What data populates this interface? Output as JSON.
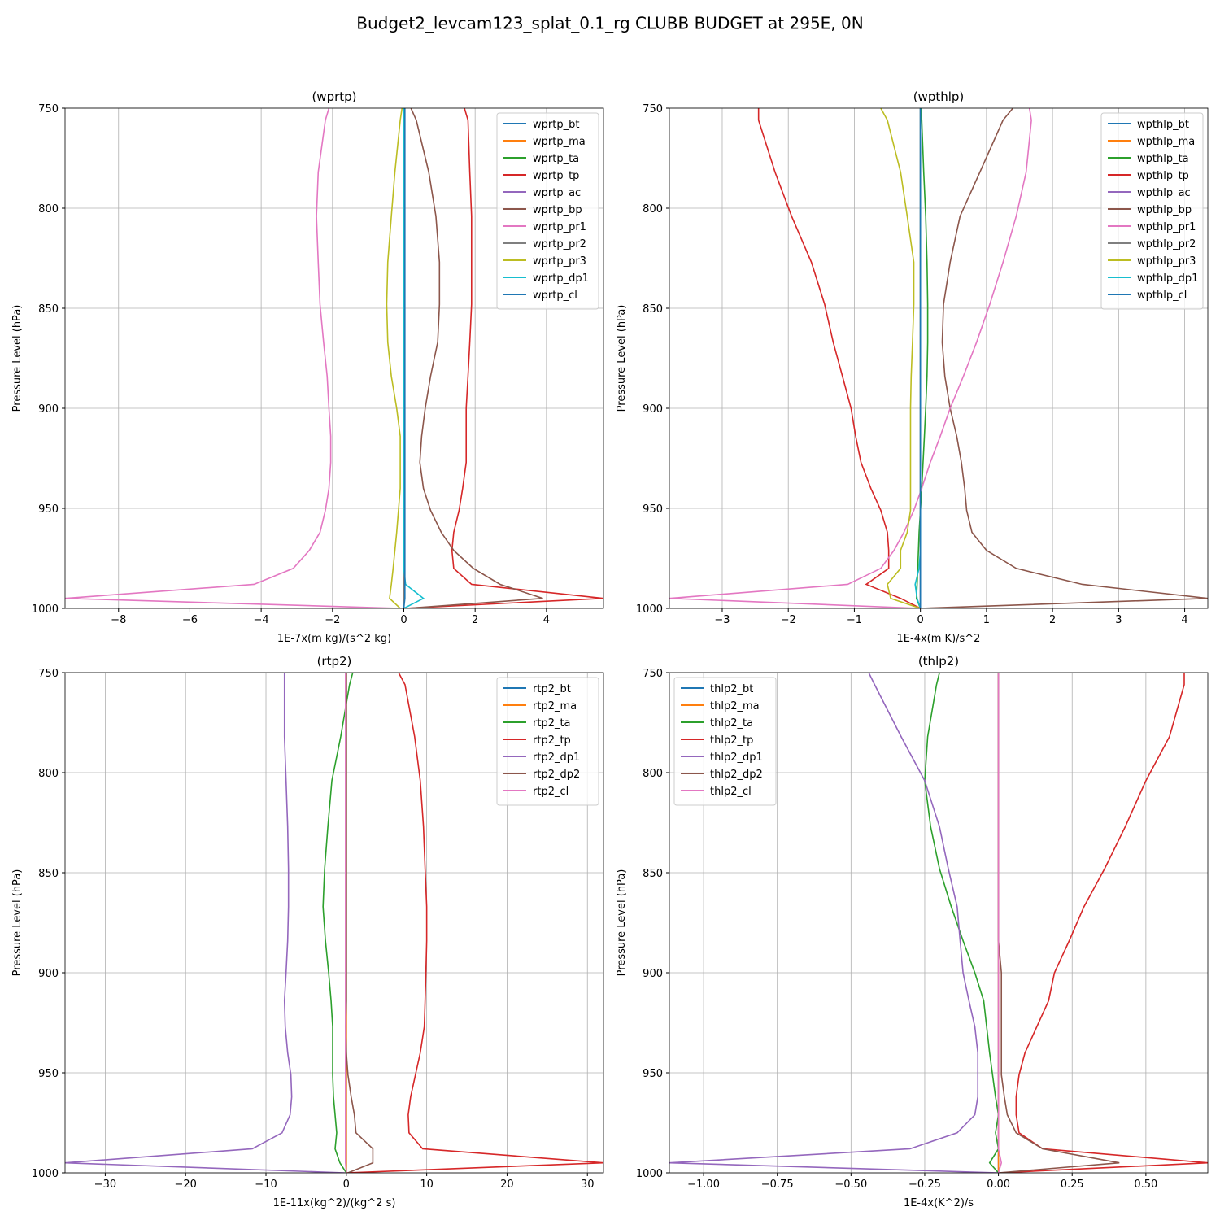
{
  "title": "Budget2_levcam123_splat_0.1_rg CLUBB BUDGET at 295E, 0N",
  "chart_data": [
    {
      "type": "line",
      "title": "(wprtp)",
      "xlabel": "1E-7x(m kg)/(s^2 kg)",
      "ylabel": "Pressure Level (hPa)",
      "y": [
        750,
        756,
        782,
        804,
        827,
        848,
        867,
        884,
        900,
        914,
        927,
        940,
        951,
        962,
        971,
        980,
        988,
        995,
        1000
      ],
      "ylim": [
        1000,
        750
      ],
      "yticks": [
        750,
        800,
        850,
        900,
        950,
        1000
      ],
      "xlim": [
        -9.5,
        5.6
      ],
      "xticks": [
        {
          "value": -8,
          "label": "−8"
        },
        {
          "value": -6,
          "label": "−6"
        },
        {
          "value": -4,
          "label": "−4"
        },
        {
          "value": -2,
          "label": "−2"
        },
        0,
        2,
        4
      ],
      "grid": true,
      "legend": "upper right",
      "series": [
        {
          "name": "wprtp_bt",
          "color": "#1f77b4",
          "values": [
            0,
            0,
            0,
            0,
            0,
            0,
            0,
            0,
            0,
            0,
            0,
            0,
            0,
            0,
            0,
            0,
            0,
            0,
            0
          ]
        },
        {
          "name": "wprtp_ma",
          "color": "#ff7f0e",
          "values": [
            0,
            0,
            0,
            0,
            0,
            0,
            0,
            0,
            0,
            0,
            0,
            0,
            0,
            0,
            0,
            0,
            0,
            0,
            0
          ]
        },
        {
          "name": "wprtp_ta",
          "color": "#2ca02c",
          "values": [
            0,
            0,
            0,
            0,
            0,
            0,
            0,
            0,
            0,
            0,
            0,
            0,
            0,
            0,
            0,
            0,
            0,
            0,
            0
          ]
        },
        {
          "name": "wprtp_tp",
          "color": "#d62728",
          "values": [
            1.7,
            1.8,
            1.85,
            1.9,
            1.9,
            1.9,
            1.85,
            1.8,
            1.75,
            1.75,
            1.75,
            1.65,
            1.55,
            1.4,
            1.35,
            1.4,
            1.9,
            5.6,
            0
          ]
        },
        {
          "name": "wprtp_ac",
          "color": "#9467bd",
          "values": [
            0,
            0,
            0,
            0,
            0,
            0,
            0,
            0,
            0,
            0,
            0,
            0,
            0,
            0,
            0,
            0,
            0,
            0,
            0
          ]
        },
        {
          "name": "wprtp_bp",
          "color": "#8c564b",
          "values": [
            0.2,
            0.35,
            0.7,
            0.9,
            1.0,
            1.0,
            0.95,
            0.75,
            0.6,
            0.5,
            0.45,
            0.55,
            0.75,
            1.05,
            1.4,
            1.95,
            2.7,
            3.9,
            0.1
          ]
        },
        {
          "name": "wprtp_pr1",
          "color": "#e377c2",
          "values": [
            -2.1,
            -2.2,
            -2.4,
            -2.45,
            -2.4,
            -2.35,
            -2.25,
            -2.15,
            -2.1,
            -2.05,
            -2.05,
            -2.1,
            -2.2,
            -2.35,
            -2.65,
            -3.1,
            -4.2,
            -9.5,
            -0.1
          ]
        },
        {
          "name": "wprtp_pr2",
          "color": "#7f7f7f",
          "values": [
            0,
            0,
            0,
            0,
            0,
            0,
            0,
            0,
            0,
            0,
            0,
            0,
            0,
            0,
            0,
            0,
            0,
            0,
            0
          ]
        },
        {
          "name": "wprtp_pr3",
          "color": "#bcbd22",
          "values": [
            -0.05,
            -0.1,
            -0.25,
            -0.35,
            -0.45,
            -0.48,
            -0.45,
            -0.35,
            -0.2,
            -0.1,
            -0.1,
            -0.1,
            -0.15,
            -0.2,
            -0.25,
            -0.3,
            -0.35,
            -0.4,
            -0.1
          ]
        },
        {
          "name": "wprtp_dp1",
          "color": "#17becf",
          "values": [
            0,
            0,
            0,
            0,
            0,
            0,
            0,
            0,
            0,
            0,
            0,
            0,
            0,
            0,
            0,
            0,
            0.05,
            0.55,
            0
          ]
        },
        {
          "name": "wprtp_cl",
          "color": "#1f77b4",
          "values": [
            0.03,
            0.03,
            0.03,
            0.03,
            0.03,
            0.03,
            0.03,
            0.03,
            0.03,
            0.03,
            0.03,
            0.03,
            0.03,
            0.03,
            0.03,
            0.03,
            0.03,
            0.03,
            0
          ]
        }
      ]
    },
    {
      "type": "line",
      "title": "(wpthlp)",
      "xlabel": "1E-4x(m K)/s^2",
      "ylabel": "Pressure Level (hPa)",
      "y": [
        750,
        756,
        782,
        804,
        827,
        848,
        867,
        884,
        900,
        914,
        927,
        940,
        951,
        962,
        971,
        980,
        988,
        995,
        1000
      ],
      "ylim": [
        1000,
        750
      ],
      "yticks": [
        750,
        800,
        850,
        900,
        950,
        1000
      ],
      "xlim": [
        -3.8,
        4.35
      ],
      "xticks": [
        {
          "value": -3,
          "label": "−3"
        },
        {
          "value": -2,
          "label": "−2"
        },
        {
          "value": -1,
          "label": "−1"
        },
        0,
        1,
        2,
        3,
        4
      ],
      "grid": true,
      "legend": "upper right",
      "series": [
        {
          "name": "wpthlp_bt",
          "color": "#1f77b4",
          "values": [
            0,
            0,
            0,
            0,
            0,
            0,
            0,
            0,
            0,
            0,
            0,
            0,
            0,
            0,
            0,
            0,
            0,
            0,
            0
          ]
        },
        {
          "name": "wpthlp_ma",
          "color": "#ff7f0e",
          "values": [
            0,
            0,
            0,
            0,
            0,
            0,
            0,
            0,
            0,
            0,
            0,
            0,
            0,
            0,
            0,
            0,
            0,
            0,
            0
          ]
        },
        {
          "name": "wpthlp_ta",
          "color": "#2ca02c",
          "values": [
            0.01,
            0.02,
            0.05,
            0.08,
            0.1,
            0.11,
            0.11,
            0.1,
            0.08,
            0.06,
            0.04,
            0.02,
            0,
            -0.02,
            -0.03,
            -0.04,
            -0.05,
            -0.06,
            0
          ]
        },
        {
          "name": "wpthlp_tp",
          "color": "#d62728",
          "values": [
            -2.45,
            -2.45,
            -2.2,
            -1.95,
            -1.65,
            -1.45,
            -1.32,
            -1.18,
            -1.05,
            -0.98,
            -0.9,
            -0.75,
            -0.6,
            -0.5,
            -0.48,
            -0.48,
            -0.82,
            -0.3,
            0
          ]
        },
        {
          "name": "wpthlp_ac",
          "color": "#9467bd",
          "values": [
            0,
            0,
            0,
            0,
            0,
            0,
            0,
            0,
            0,
            0,
            0,
            0,
            0,
            0,
            0,
            0,
            0,
            0,
            0
          ]
        },
        {
          "name": "wpthlp_bp",
          "color": "#8c564b",
          "values": [
            1.4,
            1.25,
            0.9,
            0.6,
            0.45,
            0.35,
            0.33,
            0.37,
            0.45,
            0.55,
            0.62,
            0.67,
            0.7,
            0.78,
            1.0,
            1.45,
            2.45,
            4.35,
            0
          ]
        },
        {
          "name": "wpthlp_pr1",
          "color": "#e377c2",
          "values": [
            1.65,
            1.68,
            1.6,
            1.45,
            1.25,
            1.05,
            0.85,
            0.65,
            0.45,
            0.3,
            0.15,
            0.02,
            -0.1,
            -0.25,
            -0.4,
            -0.6,
            -1.1,
            -3.8,
            0
          ]
        },
        {
          "name": "wpthlp_pr2",
          "color": "#7f7f7f",
          "values": [
            0,
            0,
            0,
            0,
            0,
            0,
            0,
            0,
            0,
            0,
            0,
            0,
            0,
            0,
            0,
            0,
            0,
            0,
            0
          ]
        },
        {
          "name": "wpthlp_pr3",
          "color": "#bcbd22",
          "values": [
            -0.6,
            -0.5,
            -0.3,
            -0.2,
            -0.1,
            -0.1,
            -0.12,
            -0.14,
            -0.15,
            -0.15,
            -0.15,
            -0.15,
            -0.15,
            -0.2,
            -0.3,
            -0.3,
            -0.5,
            -0.45,
            0
          ]
        },
        {
          "name": "wpthlp_dp1",
          "color": "#17becf",
          "values": [
            0,
            0,
            0,
            0,
            0,
            0,
            0,
            0,
            0,
            0,
            0,
            0,
            0,
            0,
            0,
            -0.02,
            -0.08,
            -0.05,
            0
          ]
        },
        {
          "name": "wpthlp_cl",
          "color": "#1f77b4",
          "values": [
            0,
            0,
            0,
            0,
            0,
            0,
            0,
            0,
            0,
            0,
            0,
            0,
            0,
            0,
            0,
            0,
            0,
            0,
            0
          ]
        }
      ]
    },
    {
      "type": "line",
      "title": "(rtp2)",
      "xlabel": "1E-11x(kg^2)/(kg^2 s)",
      "ylabel": "Pressure Level (hPa)",
      "y": [
        750,
        756,
        782,
        804,
        827,
        848,
        867,
        884,
        900,
        914,
        927,
        940,
        951,
        962,
        971,
        980,
        988,
        995,
        1000
      ],
      "ylim": [
        1000,
        750
      ],
      "yticks": [
        750,
        800,
        850,
        900,
        950,
        1000
      ],
      "xlim": [
        -35,
        32
      ],
      "xticks": [
        {
          "value": -30,
          "label": "−30"
        },
        {
          "value": -20,
          "label": "−20"
        },
        {
          "value": -10,
          "label": "−10"
        },
        0,
        10,
        20,
        30
      ],
      "grid": true,
      "legend": "upper right",
      "series": [
        {
          "name": "rtp2_bt",
          "color": "#1f77b4",
          "values": [
            0,
            0,
            0,
            0,
            0,
            0,
            0,
            0,
            0,
            0,
            0,
            0,
            0,
            0,
            0,
            0,
            0,
            0,
            0
          ]
        },
        {
          "name": "rtp2_ma",
          "color": "#ff7f0e",
          "values": [
            0,
            0,
            0,
            0,
            0,
            0,
            0,
            0,
            0,
            0,
            0,
            0,
            0,
            0,
            0,
            0,
            0,
            0,
            0
          ]
        },
        {
          "name": "rtp2_ta",
          "color": "#2ca02c",
          "values": [
            0.8,
            0.4,
            -0.7,
            -1.8,
            -2.3,
            -2.7,
            -2.9,
            -2.6,
            -2.2,
            -1.9,
            -1.7,
            -1.7,
            -1.7,
            -1.6,
            -1.4,
            -1.2,
            -1.4,
            -0.8,
            0
          ]
        },
        {
          "name": "rtp2_tp",
          "color": "#d62728",
          "values": [
            6.5,
            7.3,
            8.5,
            9.2,
            9.6,
            9.8,
            10,
            10,
            9.9,
            9.8,
            9.7,
            9.2,
            8.6,
            8.0,
            7.7,
            7.8,
            9.5,
            32,
            0
          ]
        },
        {
          "name": "rtp2_dp1",
          "color": "#9467bd",
          "values": [
            -7.7,
            -7.7,
            -7.7,
            -7.5,
            -7.3,
            -7.2,
            -7.2,
            -7.3,
            -7.5,
            -7.7,
            -7.6,
            -7.3,
            -6.9,
            -6.8,
            -7.0,
            -8.0,
            -11.7,
            -35,
            -0.2
          ]
        },
        {
          "name": "rtp2_dp2",
          "color": "#8c564b",
          "values": [
            0,
            0,
            0,
            0,
            0,
            0,
            0,
            0,
            0,
            0,
            -0.1,
            0,
            0.2,
            0.6,
            1.0,
            1.2,
            3.3,
            3.3,
            0.2
          ]
        },
        {
          "name": "rtp2_cl",
          "color": "#e377c2",
          "values": [
            -0.1,
            -0.1,
            -0.1,
            -0.1,
            -0.1,
            -0.1,
            -0.1,
            -0.1,
            -0.1,
            -0.1,
            -0.1,
            -0.1,
            -0.1,
            -0.1,
            -0.1,
            -0.1,
            -0.1,
            -0.1,
            0
          ]
        }
      ]
    },
    {
      "type": "line",
      "title": "(thlp2)",
      "xlabel": "1E-4x(K^2)/s",
      "ylabel": "Pressure Level (hPa)",
      "y": [
        750,
        756,
        782,
        804,
        827,
        848,
        867,
        884,
        900,
        914,
        927,
        940,
        951,
        962,
        971,
        980,
        988,
        995,
        1000
      ],
      "ylim": [
        1000,
        750
      ],
      "yticks": [
        750,
        800,
        850,
        900,
        950,
        1000
      ],
      "xlim": [
        -1.116,
        0.71
      ],
      "xticks": [
        {
          "value": -1,
          "label": "−1.00"
        },
        {
          "value": -0.75,
          "label": "−0.75"
        },
        {
          "value": -0.5,
          "label": "−0.50"
        },
        {
          "value": -0.25,
          "label": "−0.25"
        },
        {
          "value": 0,
          "label": "0.00"
        },
        {
          "value": 0.25,
          "label": "0.25"
        },
        {
          "value": 0.5,
          "label": "0.50"
        }
      ],
      "grid": true,
      "legend": "upper left",
      "series": [
        {
          "name": "thlp2_bt",
          "color": "#1f77b4",
          "values": [
            0,
            0,
            0,
            0,
            0,
            0,
            0,
            0,
            0,
            0,
            0,
            0,
            0,
            0,
            0,
            0,
            0,
            0,
            0
          ]
        },
        {
          "name": "thlp2_ma",
          "color": "#ff7f0e",
          "values": [
            0,
            0,
            0,
            0,
            0,
            0,
            0,
            0,
            0,
            0,
            0,
            0,
            0,
            0,
            0,
            0,
            0,
            0,
            0
          ]
        },
        {
          "name": "thlp2_ta",
          "color": "#2ca02c",
          "values": [
            -0.2,
            -0.21,
            -0.24,
            -0.25,
            -0.23,
            -0.2,
            -0.16,
            -0.12,
            -0.08,
            -0.05,
            -0.04,
            -0.03,
            -0.02,
            -0.01,
            0,
            -0.01,
            0,
            -0.03,
            0
          ]
        },
        {
          "name": "thlp2_tp",
          "color": "#d62728",
          "values": [
            0.63,
            0.63,
            0.58,
            0.5,
            0.43,
            0.36,
            0.29,
            0.24,
            0.19,
            0.17,
            0.13,
            0.09,
            0.07,
            0.06,
            0.06,
            0.07,
            0.15,
            0.71,
            0
          ]
        },
        {
          "name": "thlp2_dp1",
          "color": "#9467bd",
          "values": [
            -0.44,
            -0.42,
            -0.33,
            -0.25,
            -0.2,
            -0.17,
            -0.14,
            -0.13,
            -0.12,
            -0.1,
            -0.08,
            -0.07,
            -0.07,
            -0.07,
            -0.08,
            -0.14,
            -0.3,
            -1.116,
            0
          ]
        },
        {
          "name": "thlp2_dp2",
          "color": "#8c564b",
          "values": [
            0,
            0,
            0,
            0,
            0,
            0,
            0,
            0,
            0.01,
            0.01,
            0.01,
            0.01,
            0.01,
            0.02,
            0.03,
            0.06,
            0.15,
            0.41,
            0
          ]
        },
        {
          "name": "thlp2_cl",
          "color": "#e377c2",
          "values": [
            0,
            0,
            0,
            0,
            0,
            0,
            0,
            0,
            0,
            0,
            0,
            0,
            0,
            0,
            0,
            0,
            0,
            0.01,
            0
          ]
        }
      ]
    }
  ]
}
